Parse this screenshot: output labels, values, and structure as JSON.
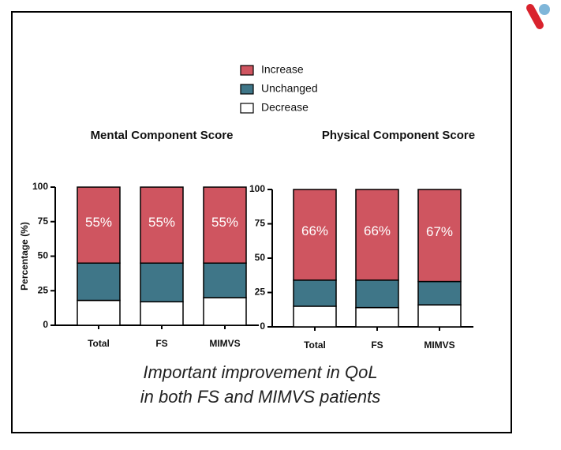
{
  "chart_data": [
    {
      "type": "stacked-bar",
      "title": "Mental Component Score",
      "ylabel": "Percentage (%)",
      "categories": [
        "Total",
        "FS",
        "MIMVS"
      ],
      "series": [
        {
          "name": "Decrease",
          "color": "#ffffff",
          "values": [
            18,
            17,
            20
          ]
        },
        {
          "name": "Unchanged",
          "color": "#3f7688",
          "values": [
            27,
            28,
            25
          ]
        },
        {
          "name": "Increase",
          "color": "#cf5560",
          "values": [
            55,
            55,
            55
          ],
          "value_labels": [
            "55%",
            "55%",
            "55%"
          ]
        }
      ],
      "ylim": [
        0,
        100
      ],
      "yticks": [
        0,
        25,
        50,
        75,
        100
      ]
    },
    {
      "type": "stacked-bar",
      "title": "Physical Component Score",
      "categories": [
        "Total",
        "FS",
        "MIMVS"
      ],
      "series": [
        {
          "name": "Decrease",
          "color": "#ffffff",
          "values": [
            15,
            14,
            16
          ]
        },
        {
          "name": "Unchanged",
          "color": "#3f7688",
          "values": [
            19,
            20,
            17
          ]
        },
        {
          "name": "Increase",
          "color": "#cf5560",
          "values": [
            66,
            66,
            67
          ],
          "value_labels": [
            "66%",
            "66%",
            "67%"
          ]
        }
      ],
      "ylim": [
        0,
        100
      ],
      "yticks": [
        0,
        25,
        50,
        75,
        100
      ]
    }
  ],
  "caption": [
    "Important improvement in QoL",
    "in both FS and MIMVS patients"
  ]
}
